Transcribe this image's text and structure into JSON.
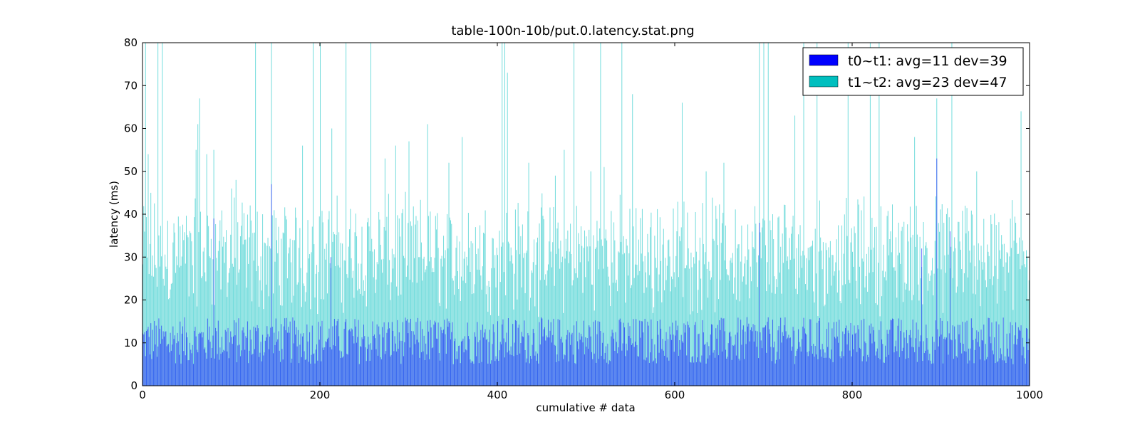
{
  "chart_data": {
    "type": "bar",
    "title": "table-100n-10b/put.0.latency.stat.png",
    "xlabel": "cumulative # data",
    "ylabel": "latency (ms)",
    "xlim": [
      0,
      1000
    ],
    "ylim": [
      0,
      80
    ],
    "xticks": [
      0,
      200,
      400,
      600,
      800,
      1000
    ],
    "yticks": [
      0,
      10,
      20,
      30,
      40,
      50,
      60,
      70,
      80
    ],
    "grid": false,
    "legend_position": "top-right",
    "stacked": true,
    "n_points": 1000,
    "series": [
      {
        "name": "t0~t1: avg=11 dev=39",
        "color": "#0000ff",
        "avg": 11,
        "dev": 39,
        "base_range": [
          5,
          16
        ]
      },
      {
        "name": "t1~t2: avg=23 dev=47",
        "color": "#00bfbf",
        "avg": 23,
        "dev": 47,
        "base_range": [
          10,
          30
        ]
      }
    ],
    "t0_spikes": [
      {
        "x": 145,
        "value": 47
      },
      {
        "x": 895,
        "value": 53
      },
      {
        "x": 910,
        "value": 36
      },
      {
        "x": 80,
        "value": 39
      },
      {
        "x": 695,
        "value": 38
      },
      {
        "x": 212,
        "value": 30
      },
      {
        "x": 878,
        "value": 32
      }
    ],
    "total_spikes": [
      {
        "x": 3,
        "value": 80
      },
      {
        "x": 6,
        "value": 54
      },
      {
        "x": 9,
        "value": 45
      },
      {
        "x": 17,
        "value": 80
      },
      {
        "x": 22,
        "value": 80
      },
      {
        "x": 60,
        "value": 55
      },
      {
        "x": 62,
        "value": 61
      },
      {
        "x": 64,
        "value": 67
      },
      {
        "x": 72,
        "value": 54
      },
      {
        "x": 80,
        "value": 55
      },
      {
        "x": 100,
        "value": 46
      },
      {
        "x": 105,
        "value": 48
      },
      {
        "x": 127,
        "value": 80
      },
      {
        "x": 145,
        "value": 80
      },
      {
        "x": 180,
        "value": 56
      },
      {
        "x": 192,
        "value": 80
      },
      {
        "x": 200,
        "value": 80
      },
      {
        "x": 213,
        "value": 60
      },
      {
        "x": 229,
        "value": 80
      },
      {
        "x": 257,
        "value": 80
      },
      {
        "x": 273,
        "value": 53
      },
      {
        "x": 285,
        "value": 56
      },
      {
        "x": 300,
        "value": 57
      },
      {
        "x": 321,
        "value": 61
      },
      {
        "x": 345,
        "value": 52
      },
      {
        "x": 360,
        "value": 58
      },
      {
        "x": 405,
        "value": 80
      },
      {
        "x": 408,
        "value": 80
      },
      {
        "x": 411,
        "value": 73
      },
      {
        "x": 435,
        "value": 52
      },
      {
        "x": 465,
        "value": 49
      },
      {
        "x": 475,
        "value": 55
      },
      {
        "x": 486,
        "value": 80
      },
      {
        "x": 505,
        "value": 50
      },
      {
        "x": 516,
        "value": 80
      },
      {
        "x": 520,
        "value": 51
      },
      {
        "x": 540,
        "value": 80
      },
      {
        "x": 552,
        "value": 68
      },
      {
        "x": 608,
        "value": 66
      },
      {
        "x": 635,
        "value": 50
      },
      {
        "x": 655,
        "value": 52
      },
      {
        "x": 695,
        "value": 80
      },
      {
        "x": 700,
        "value": 80
      },
      {
        "x": 705,
        "value": 80
      },
      {
        "x": 735,
        "value": 63
      },
      {
        "x": 745,
        "value": 80
      },
      {
        "x": 760,
        "value": 80
      },
      {
        "x": 795,
        "value": 80
      },
      {
        "x": 820,
        "value": 80
      },
      {
        "x": 830,
        "value": 80
      },
      {
        "x": 870,
        "value": 58
      },
      {
        "x": 895,
        "value": 67
      },
      {
        "x": 912,
        "value": 80
      },
      {
        "x": 940,
        "value": 50
      },
      {
        "x": 990,
        "value": 64
      }
    ]
  },
  "legend": {
    "t0_label": "t0~t1: avg=11 dev=39",
    "t1_label": "t1~t2: avg=23 dev=47"
  }
}
